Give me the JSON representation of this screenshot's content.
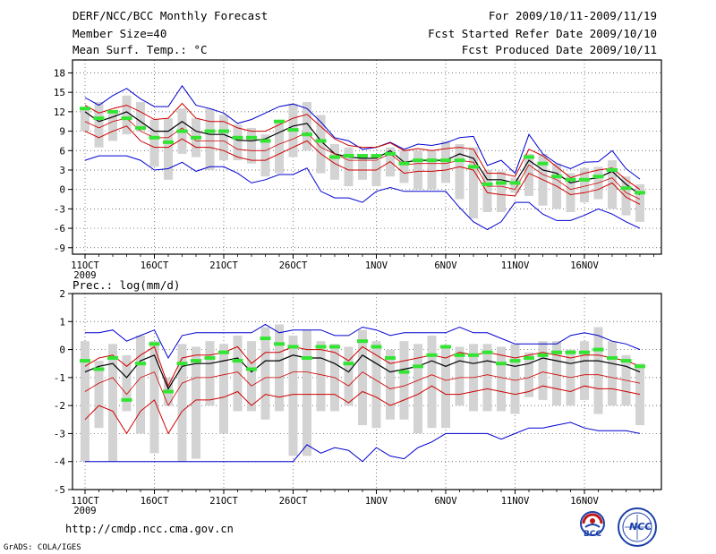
{
  "header": {
    "title": "DERF/NCC/BCC Monthly Forecast",
    "member_size": "Member Size=40",
    "period": "For 2009/10/11-2009/11/19",
    "started": "Fcst Started Refer Date 2009/10/10",
    "produced": "Fcst Produced Date 2009/10/11"
  },
  "footer": {
    "url": "http://cmdp.ncc.cma.gov.cn",
    "grads": "GrADS: COLA/IGES",
    "logo1_text": "BCC",
    "logo2_text": "NCC"
  },
  "colors": {
    "box": "#d3d3d3",
    "ens_mean": "#000000",
    "spread_inner": "#d00000",
    "spread_outer": "#0000d0",
    "green": "#33e533"
  },
  "chart_data": [
    {
      "type": "box-ensemble",
      "title": "Mean Surf. Temp.: °C",
      "ylim": [
        -10,
        20
      ],
      "yticks": [
        18,
        15,
        12,
        9,
        6,
        3,
        0,
        -3,
        -6,
        -9
      ],
      "xticks": [
        {
          "day": 1,
          "label": "11OCT"
        },
        {
          "day": 6,
          "label": "16OCT"
        },
        {
          "day": 11,
          "label": "21OCT"
        },
        {
          "day": 16,
          "label": "26OCT"
        },
        {
          "day": 22,
          "label": "1NOV"
        },
        {
          "day": 27,
          "label": "6NOV"
        },
        {
          "day": 32,
          "label": "11NOV"
        },
        {
          "day": 37,
          "label": "16NOV"
        }
      ],
      "year_label": "2009",
      "series": {
        "max": [
          14.2,
          13.0,
          14.5,
          15.6,
          14.0,
          12.8,
          12.8,
          16.0,
          13.0,
          12.5,
          11.8,
          10.2,
          10.8,
          11.8,
          12.8,
          13.2,
          12.5,
          10.4,
          8.0,
          7.5,
          6.2,
          6.5,
          7.3,
          6.2,
          7.0,
          6.8,
          7.2,
          8.0,
          8.2,
          3.7,
          4.5,
          2.5,
          8.5,
          5.5,
          4.0,
          3.2,
          4.2,
          4.3,
          6.0,
          3.2,
          1.6
        ],
        "upper": [
          13.0,
          11.8,
          12.5,
          13.0,
          12.0,
          10.8,
          11.0,
          13.3,
          11.0,
          10.5,
          10.5,
          9.5,
          9.0,
          9.0,
          10.0,
          11.0,
          11.6,
          9.7,
          7.8,
          6.8,
          6.5,
          6.5,
          7.2,
          6.0,
          6.3,
          6.0,
          6.3,
          6.5,
          6.2,
          2.5,
          2.5,
          2.0,
          6.2,
          5.2,
          3.5,
          1.8,
          2.5,
          3.0,
          3.3,
          1.5,
          0.0
        ],
        "mean": [
          12.0,
          10.5,
          11.2,
          12.0,
          10.5,
          9.0,
          9.0,
          10.5,
          9.0,
          8.5,
          8.5,
          7.6,
          7.5,
          7.8,
          8.8,
          9.8,
          10.2,
          7.5,
          5.5,
          5.0,
          4.8,
          4.8,
          6.0,
          4.2,
          4.5,
          4.5,
          4.5,
          5.5,
          4.8,
          1.5,
          1.5,
          1.0,
          4.5,
          3.0,
          2.5,
          1.0,
          1.5,
          1.8,
          2.8,
          0.8,
          -0.8
        ],
        "lower": [
          10.5,
          9.5,
          10.5,
          11.0,
          9.0,
          8.0,
          8.0,
          9.5,
          7.5,
          7.5,
          7.5,
          6.2,
          6.0,
          6.0,
          7.0,
          7.8,
          8.8,
          6.5,
          5.5,
          4.5,
          4.5,
          4.5,
          5.5,
          3.8,
          4.0,
          4.0,
          4.0,
          4.5,
          4.2,
          0.5,
          0.5,
          0.0,
          3.8,
          2.3,
          1.5,
          0.0,
          0.5,
          1.0,
          1.8,
          -0.5,
          -1.5
        ],
        "lower2": [
          9.0,
          8.0,
          9.0,
          9.8,
          7.5,
          6.5,
          6.5,
          7.8,
          6.5,
          6.5,
          6.0,
          5.0,
          4.5,
          4.5,
          5.5,
          6.5,
          7.5,
          5.5,
          4.0,
          3.0,
          3.0,
          3.0,
          4.3,
          2.5,
          2.8,
          2.8,
          3.0,
          3.5,
          3.0,
          -0.5,
          -0.8,
          -1.0,
          2.5,
          1.5,
          0.5,
          -0.8,
          -0.5,
          0.0,
          1.0,
          -1.2,
          -2.3
        ],
        "min": [
          4.5,
          5.2,
          5.2,
          5.2,
          4.5,
          3.0,
          3.2,
          4.2,
          2.8,
          3.5,
          3.5,
          2.5,
          1.0,
          1.5,
          2.3,
          2.3,
          3.3,
          -0.3,
          -1.3,
          -1.3,
          -2.0,
          -0.3,
          0.3,
          -0.3,
          -0.3,
          -0.3,
          -0.3,
          -2.8,
          -5.0,
          -6.2,
          -5.0,
          -2.0,
          -2.0,
          -3.8,
          -4.8,
          -4.8,
          -4.0,
          -3.0,
          -3.8,
          -5.0,
          -6.0
        ],
        "box_high": [
          12.5,
          13.5,
          12.0,
          14.5,
          13.5,
          10.8,
          11.0,
          12.5,
          11.0,
          12.5,
          11.5,
          10.0,
          9.5,
          8.5,
          10.5,
          13.2,
          13.5,
          11.5,
          7.0,
          6.5,
          5.5,
          4.5,
          6.5,
          6.0,
          6.0,
          6.0,
          7.5,
          7.0,
          6.5,
          3.0,
          2.8,
          1.8,
          5.5,
          5.5,
          4.0,
          2.5,
          3.3,
          3.5,
          4.5,
          2.0,
          0.8
        ],
        "box_low": [
          9.0,
          6.5,
          7.5,
          8.5,
          9.0,
          3.5,
          1.5,
          5.5,
          5.0,
          3.0,
          4.5,
          4.5,
          4.0,
          2.0,
          2.5,
          5.0,
          6.0,
          2.5,
          1.5,
          0.5,
          1.5,
          0.5,
          2.0,
          1.0,
          0.0,
          0.0,
          1.0,
          -1.5,
          -4.5,
          -3.5,
          -3.5,
          -0.5,
          -1.0,
          -2.5,
          -3.0,
          -3.5,
          -2.0,
          -1.5,
          -3.0,
          -4.0,
          -5.0
        ],
        "obs": [
          12.5,
          11.0,
          12.0,
          11.0,
          9.5,
          8.0,
          7.3,
          9.0,
          8.0,
          9.0,
          9.0,
          8.0,
          8.0,
          7.5,
          10.5,
          9.2,
          8.5,
          7.5,
          5.0,
          5.2,
          5.2,
          5.2,
          5.5,
          4.0,
          4.5,
          4.5,
          4.5,
          4.5,
          3.5,
          0.8,
          1.0,
          1.0,
          5.0,
          4.0,
          2.0,
          1.5,
          1.5,
          2.0,
          3.0,
          0.2,
          -0.5
        ]
      }
    },
    {
      "type": "box-ensemble",
      "title": "Prec.: log(mm/d)",
      "ylim": [
        -5,
        2
      ],
      "yticks": [
        2,
        1,
        0,
        -1,
        -2,
        -3,
        -4,
        -5
      ],
      "xticks": [
        {
          "day": 1,
          "label": "11OCT"
        },
        {
          "day": 6,
          "label": "16OCT"
        },
        {
          "day": 11,
          "label": "21OCT"
        },
        {
          "day": 16,
          "label": "26OCT"
        },
        {
          "day": 22,
          "label": "1NOV"
        },
        {
          "day": 27,
          "label": "6NOV"
        },
        {
          "day": 32,
          "label": "11NOV"
        },
        {
          "day": 37,
          "label": "16NOV"
        }
      ],
      "year_label": "2009",
      "series": {
        "max": [
          0.6,
          0.6,
          0.7,
          0.3,
          0.5,
          0.7,
          -0.3,
          0.5,
          0.6,
          0.6,
          0.6,
          0.6,
          0.6,
          0.9,
          0.6,
          0.7,
          0.7,
          0.7,
          0.5,
          0.5,
          0.8,
          0.7,
          0.5,
          0.6,
          0.6,
          0.6,
          0.6,
          0.8,
          0.6,
          0.6,
          0.4,
          0.2,
          0.2,
          0.2,
          0.2,
          0.5,
          0.6,
          0.5,
          0.3,
          0.2,
          0.0
        ],
        "upper": [
          -0.6,
          -0.3,
          -0.2,
          -0.6,
          -0.2,
          0.1,
          -1.3,
          -0.3,
          -0.2,
          -0.2,
          -0.1,
          0.1,
          -0.5,
          -0.1,
          -0.1,
          0.1,
          0.0,
          0.0,
          -0.1,
          -0.4,
          0.1,
          -0.2,
          -0.5,
          -0.4,
          -0.3,
          -0.2,
          -0.3,
          -0.1,
          -0.2,
          -0.1,
          -0.2,
          -0.3,
          -0.2,
          -0.1,
          -0.2,
          -0.3,
          -0.2,
          -0.2,
          -0.3,
          -0.4,
          -0.6
        ],
        "mean": [
          -0.8,
          -0.6,
          -0.5,
          -1.0,
          -0.4,
          -0.2,
          -1.4,
          -0.6,
          -0.5,
          -0.5,
          -0.4,
          -0.3,
          -0.8,
          -0.4,
          -0.4,
          -0.2,
          -0.3,
          -0.3,
          -0.5,
          -0.8,
          -0.2,
          -0.5,
          -0.8,
          -0.7,
          -0.6,
          -0.4,
          -0.6,
          -0.4,
          -0.5,
          -0.4,
          -0.5,
          -0.6,
          -0.5,
          -0.3,
          -0.4,
          -0.5,
          -0.4,
          -0.4,
          -0.5,
          -0.6,
          -0.8
        ],
        "lower": [
          -1.5,
          -1.2,
          -1.0,
          -1.6,
          -1.0,
          -0.8,
          -2.0,
          -1.2,
          -1.0,
          -1.0,
          -0.9,
          -0.8,
          -1.3,
          -1.0,
          -1.0,
          -0.8,
          -0.8,
          -0.9,
          -1.0,
          -1.3,
          -0.8,
          -1.1,
          -1.4,
          -1.3,
          -1.1,
          -0.9,
          -1.1,
          -1.0,
          -1.0,
          -0.9,
          -1.0,
          -1.1,
          -1.0,
          -0.8,
          -0.9,
          -1.0,
          -0.9,
          -0.9,
          -1.0,
          -1.1,
          -1.2
        ],
        "lower2": [
          -2.5,
          -2.0,
          -2.2,
          -3.0,
          -2.2,
          -1.8,
          -3.0,
          -2.2,
          -1.8,
          -1.8,
          -1.7,
          -1.5,
          -2.0,
          -1.6,
          -1.7,
          -1.6,
          -1.6,
          -1.6,
          -1.6,
          -1.9,
          -1.5,
          -1.7,
          -2.0,
          -1.8,
          -1.6,
          -1.3,
          -1.6,
          -1.6,
          -1.5,
          -1.4,
          -1.5,
          -1.6,
          -1.5,
          -1.3,
          -1.4,
          -1.5,
          -1.3,
          -1.4,
          -1.4,
          -1.5,
          -1.6
        ],
        "min": [
          -4.0,
          -4.0,
          -4.0,
          -4.0,
          -4.0,
          -4.0,
          -4.0,
          -4.0,
          -4.0,
          -4.0,
          -4.0,
          -4.0,
          -4.0,
          -4.0,
          -4.0,
          -4.0,
          -3.4,
          -3.7,
          -3.5,
          -3.6,
          -4.0,
          -3.5,
          -3.8,
          -3.9,
          -3.5,
          -3.3,
          -3.0,
          -3.0,
          -3.0,
          -3.0,
          -3.2,
          -3.0,
          -2.8,
          -2.8,
          -2.7,
          -2.6,
          -2.8,
          -2.9,
          -2.9,
          -2.9,
          -3.0
        ],
        "box_high": [
          0.3,
          -0.4,
          0.2,
          -0.2,
          0.5,
          0.3,
          -1.0,
          0.2,
          0.1,
          0.3,
          0.2,
          0.5,
          0.3,
          0.8,
          0.9,
          0.5,
          0.7,
          0.3,
          0.2,
          0.1,
          0.7,
          0.3,
          0.0,
          0.3,
          0.2,
          0.5,
          0.1,
          0.1,
          0.2,
          0.2,
          0.1,
          0.2,
          -0.1,
          0.3,
          0.3,
          0.0,
          0.3,
          0.8,
          0.3,
          -0.2,
          -0.5
        ],
        "box_low": [
          -4.0,
          -2.8,
          -4.0,
          -2.2,
          -3.0,
          -3.7,
          -2.0,
          -4.0,
          -3.9,
          -2.0,
          -3.0,
          -2.2,
          -2.2,
          -2.5,
          -2.2,
          -3.8,
          -3.8,
          -2.2,
          -2.2,
          -2.0,
          -2.7,
          -2.8,
          -2.5,
          -2.5,
          -3.0,
          -2.8,
          -2.8,
          -2.0,
          -2.2,
          -2.2,
          -2.2,
          -2.3,
          -1.7,
          -1.8,
          -2.0,
          -2.0,
          -1.8,
          -2.3,
          -2.0,
          -2.0,
          -2.7
        ],
        "obs": [
          -0.4,
          -0.7,
          -0.3,
          -1.8,
          -0.5,
          0.2,
          -1.5,
          -0.5,
          -0.4,
          -0.3,
          -0.1,
          -0.4,
          -0.7,
          0.4,
          0.2,
          0.1,
          -0.3,
          0.1,
          0.1,
          -0.5,
          0.3,
          0.1,
          -0.3,
          -0.8,
          -0.6,
          -0.2,
          0.1,
          -0.2,
          -0.2,
          -0.1,
          -0.5,
          -0.4,
          -0.3,
          -0.2,
          -0.1,
          -0.1,
          -0.1,
          0.0,
          -0.3,
          -0.4,
          -0.6
        ]
      }
    }
  ]
}
